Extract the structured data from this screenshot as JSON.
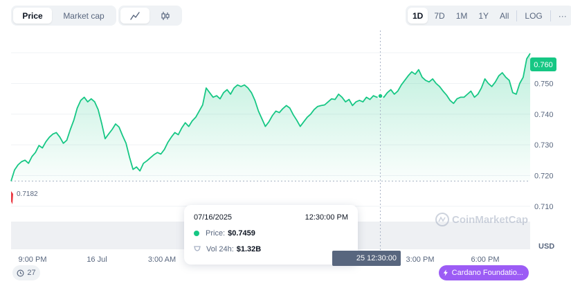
{
  "toolbar": {
    "metric_tabs": [
      {
        "label": "Price",
        "active": true
      },
      {
        "label": "Market cap",
        "active": false
      }
    ],
    "chart_types": [
      {
        "icon": "line-chart-icon",
        "active": true
      },
      {
        "icon": "candlestick-icon",
        "active": false
      }
    ],
    "ranges": [
      {
        "label": "1D",
        "active": true
      },
      {
        "label": "7D",
        "active": false
      },
      {
        "label": "1M",
        "active": false
      },
      {
        "label": "1Y",
        "active": false
      },
      {
        "label": "All",
        "active": false
      }
    ],
    "log_label": "LOG",
    "more_label": "···"
  },
  "chart_data": {
    "type": "area",
    "ylim": [
      0.705,
      0.765
    ],
    "y_ticks": [
      "0.760",
      "0.750",
      "0.740",
      "0.730",
      "0.720",
      "0.710"
    ],
    "y_tick_values": [
      0.76,
      0.75,
      0.74,
      0.73,
      0.72,
      0.71
    ],
    "x_ticks": [
      "9:00 PM",
      "16 Jul",
      "3:00 AM",
      "3:00 PM",
      "6:00 PM"
    ],
    "currency": "USD",
    "open_price_label": "0.7182",
    "open_price": 0.7182,
    "current_price_label": "0.760",
    "current_price": 0.7598,
    "watermark": "CoinMarketCap",
    "series": [
      {
        "values": [
          0.7182,
          0.7218,
          0.7235,
          0.7245,
          0.725,
          0.724,
          0.7262,
          0.7275,
          0.7298,
          0.729,
          0.731,
          0.7325,
          0.7335,
          0.734,
          0.7325,
          0.7305,
          0.7315,
          0.735,
          0.738,
          0.742,
          0.7445,
          0.7455,
          0.744,
          0.745,
          0.744,
          0.7415,
          0.737,
          0.732,
          0.7335,
          0.735,
          0.7368,
          0.7358,
          0.733,
          0.7305,
          0.726,
          0.722,
          0.7228,
          0.7215,
          0.724,
          0.7248,
          0.7258,
          0.7268,
          0.7275,
          0.727,
          0.7285,
          0.7308,
          0.7325,
          0.734,
          0.7333,
          0.7355,
          0.7372,
          0.736,
          0.7378,
          0.739,
          0.741,
          0.743,
          0.7485,
          0.747,
          0.7455,
          0.746,
          0.745,
          0.747,
          0.748,
          0.7465,
          0.7485,
          0.7495,
          0.749,
          0.7495,
          0.7485,
          0.747,
          0.7445,
          0.741,
          0.7385,
          0.736,
          0.7375,
          0.7395,
          0.741,
          0.7405,
          0.7418,
          0.7428,
          0.742,
          0.7398,
          0.738,
          0.736,
          0.7375,
          0.739,
          0.74,
          0.7415,
          0.7425,
          0.7428,
          0.743,
          0.744,
          0.745,
          0.7448,
          0.7465,
          0.7455,
          0.744,
          0.7448,
          0.7428,
          0.744,
          0.7445,
          0.744,
          0.7455,
          0.7448,
          0.746,
          0.7455,
          0.7459,
          0.7455,
          0.747,
          0.748,
          0.7465,
          0.7475,
          0.7495,
          0.751,
          0.7525,
          0.7538,
          0.753,
          0.7545,
          0.752,
          0.751,
          0.7505,
          0.7515,
          0.75,
          0.749,
          0.7475,
          0.7462,
          0.7445,
          0.7435,
          0.745,
          0.7455,
          0.7455,
          0.7465,
          0.7475,
          0.7455,
          0.7465,
          0.7485,
          0.7515,
          0.75,
          0.749,
          0.7505,
          0.7525,
          0.7535,
          0.752,
          0.751,
          0.747,
          0.7465,
          0.75,
          0.752,
          0.758,
          0.7598
        ]
      }
    ],
    "cursor_value": 0.7459
  },
  "tooltip": {
    "date": "07/16/2025",
    "time": "12:30:00 PM",
    "price_label": "Price:",
    "price_value": "$0.7459",
    "vol_label": "Vol 24h:",
    "vol_value": "$1.32B"
  },
  "cursor_label": "25 12:30:00",
  "history_count": "27",
  "event_badge": "Cardano Foundatio...",
  "colors": {
    "up": "#16c784",
    "down": "#ea3943",
    "event": "#9c5cf5",
    "grid": "#eff2f5"
  }
}
